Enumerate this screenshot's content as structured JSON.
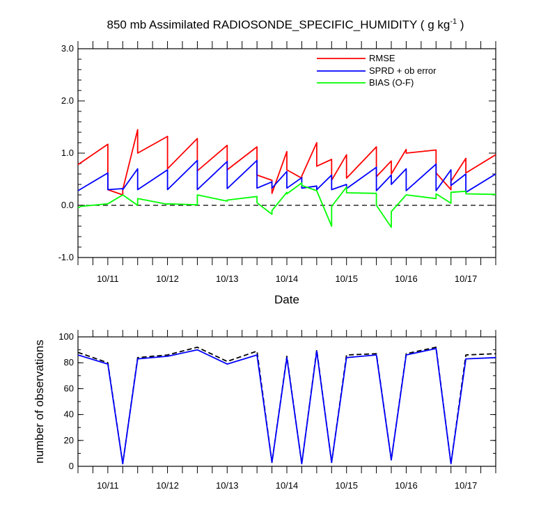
{
  "chart_data": [
    {
      "type": "line",
      "title": "850 mb Assimilated RADIOSONDE_SPECIFIC_HUMIDITY ( g kg",
      "title_sup": "-1",
      "title_end": " )",
      "xlabel": "Date",
      "ylabel": "",
      "ylim": [
        -1.0,
        3.0
      ],
      "xlim": [
        10.5,
        17.5
      ],
      "y_ticks": [
        "-1.0",
        "0.0",
        "1.0",
        "2.0",
        "3.0"
      ],
      "x_ticks": [
        {
          "value": 11,
          "label": "10/11"
        },
        {
          "value": 12,
          "label": "10/12"
        },
        {
          "value": 13,
          "label": "10/13"
        },
        {
          "value": 14,
          "label": "10/14"
        },
        {
          "value": 15,
          "label": "10/15"
        },
        {
          "value": 16,
          "label": "10/16"
        },
        {
          "value": 17,
          "label": "10/17"
        }
      ],
      "reference_line": {
        "y": 0.0,
        "style": "dashed"
      },
      "legend_position": "top-right",
      "series": [
        {
          "name": "RMSE",
          "color": "#ff0000",
          "x": [
            10.5,
            11.0,
            11.0,
            11.25,
            11.25,
            11.5,
            11.5,
            12.0,
            12.0,
            12.5,
            12.5,
            13.0,
            13.0,
            13.5,
            13.5,
            13.75,
            13.75,
            14.0,
            14.0,
            14.25,
            14.25,
            14.5,
            14.5,
            14.75,
            14.75,
            15.0,
            15.0,
            15.5,
            15.5,
            15.75,
            15.75,
            16.0,
            16.0,
            16.5,
            16.5,
            16.75,
            16.75,
            17.0,
            17.0,
            17.5
          ],
          "y": [
            0.78,
            1.17,
            0.3,
            0.2,
            0.3,
            1.45,
            1.0,
            1.32,
            0.7,
            1.28,
            0.66,
            1.15,
            0.68,
            1.12,
            0.58,
            0.48,
            0.23,
            1.03,
            0.68,
            0.52,
            0.56,
            1.2,
            0.75,
            0.88,
            0.48,
            0.97,
            0.52,
            1.12,
            0.55,
            0.85,
            0.6,
            1.07,
            1.0,
            1.06,
            0.62,
            0.3,
            0.46,
            0.9,
            0.62,
            0.97
          ]
        },
        {
          "name": "SPRD + ob error",
          "color": "#0000ff",
          "x": [
            10.5,
            11.0,
            11.0,
            11.25,
            11.25,
            11.5,
            11.5,
            12.0,
            12.0,
            12.5,
            12.5,
            13.0,
            13.0,
            13.5,
            13.5,
            13.75,
            13.75,
            14.0,
            14.0,
            14.25,
            14.25,
            14.5,
            14.5,
            14.75,
            14.75,
            15.0,
            15.0,
            15.5,
            15.5,
            15.75,
            15.75,
            16.0,
            16.0,
            16.5,
            16.5,
            16.75,
            16.75,
            17.0,
            17.0,
            17.5
          ],
          "y": [
            0.28,
            0.62,
            0.3,
            0.32,
            0.3,
            0.7,
            0.3,
            0.68,
            0.3,
            0.86,
            0.3,
            0.84,
            0.32,
            0.86,
            0.33,
            0.45,
            0.33,
            0.65,
            0.33,
            0.53,
            0.33,
            0.37,
            0.3,
            0.58,
            0.3,
            0.4,
            0.32,
            0.73,
            0.28,
            0.58,
            0.4,
            0.7,
            0.28,
            0.79,
            0.28,
            0.68,
            0.38,
            0.6,
            0.25,
            0.6
          ]
        },
        {
          "name": "BIAS (O-F)",
          "color": "#00ff00",
          "x": [
            10.5,
            10.55,
            11.0,
            11.25,
            11.25,
            11.5,
            11.5,
            12.0,
            12.0,
            12.5,
            12.5,
            13.0,
            13.0,
            13.5,
            13.5,
            13.75,
            13.75,
            14.0,
            14.0,
            14.25,
            14.25,
            14.5,
            14.5,
            14.75,
            14.75,
            15.0,
            15.0,
            15.5,
            15.5,
            15.75,
            15.75,
            16.0,
            16.0,
            16.5,
            16.5,
            16.75,
            16.75,
            17.0,
            17.0,
            17.5
          ],
          "y": [
            -0.05,
            -0.02,
            0.03,
            0.2,
            0.2,
            0.0,
            0.13,
            0.02,
            0.03,
            0.01,
            0.2,
            0.08,
            0.1,
            0.17,
            0.05,
            -0.17,
            -0.1,
            0.25,
            0.22,
            0.43,
            0.38,
            0.28,
            0.28,
            -0.4,
            -0.02,
            0.35,
            0.24,
            0.23,
            0.0,
            -0.42,
            -0.12,
            0.2,
            0.2,
            0.13,
            0.22,
            0.04,
            0.25,
            0.27,
            0.22,
            0.21
          ]
        }
      ]
    },
    {
      "type": "line",
      "title": "",
      "xlabel": "",
      "ylabel": "number of observations",
      "ylim": [
        0,
        100
      ],
      "xlim": [
        10.5,
        17.5
      ],
      "y_ticks": [
        "0",
        "20",
        "40",
        "60",
        "80",
        "100"
      ],
      "x_ticks": [
        {
          "value": 11,
          "label": "10/11"
        },
        {
          "value": 12,
          "label": "10/12"
        },
        {
          "value": 13,
          "label": "10/13"
        },
        {
          "value": 14,
          "label": "10/14"
        },
        {
          "value": 15,
          "label": "10/15"
        },
        {
          "value": 16,
          "label": "10/16"
        },
        {
          "value": 17,
          "label": "10/17"
        }
      ],
      "series": [
        {
          "color": "#000000",
          "style": "dashed",
          "x": [
            10.5,
            11.0,
            11.25,
            11.5,
            12.0,
            12.5,
            13.0,
            13.5,
            13.75,
            14.0,
            14.25,
            14.5,
            14.75,
            15.0,
            15.5,
            15.75,
            16.0,
            16.5,
            16.75,
            17.0,
            17.5
          ],
          "y": [
            88,
            80,
            2,
            84,
            86,
            92,
            81,
            89,
            3,
            85,
            2,
            90,
            3,
            86,
            87,
            5,
            87,
            92,
            2,
            86,
            87
          ]
        },
        {
          "color": "#0000ff",
          "style": "solid",
          "x": [
            10.5,
            11.0,
            11.25,
            11.5,
            12.0,
            12.5,
            13.0,
            13.5,
            13.75,
            14.0,
            14.25,
            14.5,
            14.75,
            15.0,
            15.5,
            15.75,
            16.0,
            16.5,
            16.75,
            17.0,
            17.5
          ],
          "y": [
            86,
            79,
            2,
            83,
            85,
            90,
            79,
            86,
            3,
            84,
            2,
            89,
            3,
            84,
            86,
            5,
            86,
            91,
            2,
            83,
            84
          ]
        }
      ]
    }
  ]
}
